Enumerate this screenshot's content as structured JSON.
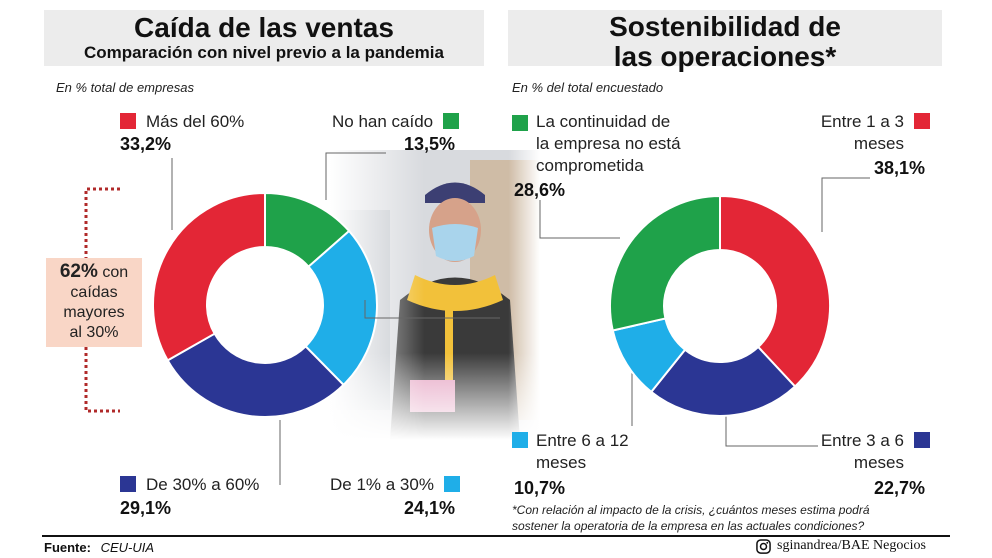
{
  "left": {
    "title": "Caída de las ventas",
    "subtitle": "Comparación con nivel previo a la pandemia",
    "note": "En % total de empresas",
    "callout": {
      "pct": "62%",
      "text_after_pct": "con",
      "line2": "caídas",
      "line3": "mayores",
      "line4": "al 30%"
    }
  },
  "right": {
    "title_line1": "Sostenibilidad de",
    "title_line2": "las operaciones*",
    "note": "En % del total encuestado",
    "footnote_line1": "*Con relación al impacto de la crisis, ¿cuántos meses estima podrá",
    "footnote_line2": "sostener la operatoria de la empresa en las actuales condiciones?"
  },
  "footer": {
    "source_label": "Fuente:",
    "source_value": "CEU-UIA",
    "credit": "sginandrea/BAE Negocios",
    "credit_icon": "instagram-icon"
  },
  "colors": {
    "red": "#e32636",
    "green": "#1fa24a",
    "blue": "#1faee8",
    "navy": "#2b3694"
  },
  "chart_data": [
    {
      "type": "pie",
      "title": "Caída de las ventas",
      "subtitle": "Comparación con nivel previo a la pandemia",
      "variant": "donut",
      "slices": [
        {
          "label": "No han caído",
          "value": 13.5,
          "value_label": "13,5%",
          "color": "#1fa24a"
        },
        {
          "label": "De 1% a 30%",
          "value": 24.1,
          "value_label": "24,1%",
          "color": "#1faee8"
        },
        {
          "label": "De 30% a 60%",
          "value": 29.1,
          "value_label": "29,1%",
          "color": "#2b3694"
        },
        {
          "label": "Más del 60%",
          "value": 33.2,
          "value_label": "33,2%",
          "color": "#e32636"
        }
      ]
    },
    {
      "type": "pie",
      "title": "Sostenibilidad de las operaciones*",
      "variant": "donut",
      "slices": [
        {
          "label": "Entre 1 a 3 meses",
          "label_lines": [
            "Entre 1 a 3",
            "meses"
          ],
          "value": 38.1,
          "value_label": "38,1%",
          "color": "#e32636"
        },
        {
          "label": "Entre 3 a 6 meses",
          "label_lines": [
            "Entre 3 a 6",
            "meses"
          ],
          "value": 22.7,
          "value_label": "22,7%",
          "color": "#2b3694"
        },
        {
          "label": "Entre 6 a 12 meses",
          "label_lines": [
            "Entre 6 a 12",
            "meses"
          ],
          "value": 10.7,
          "value_label": "10,7%",
          "color": "#1faee8"
        },
        {
          "label": "La continuidad de la empresa no está comprometida",
          "label_lines": [
            "La continuidad de",
            "la empresa no está",
            "comprometida"
          ],
          "value": 28.6,
          "value_label": "28,6%",
          "color": "#1fa24a"
        }
      ]
    }
  ]
}
